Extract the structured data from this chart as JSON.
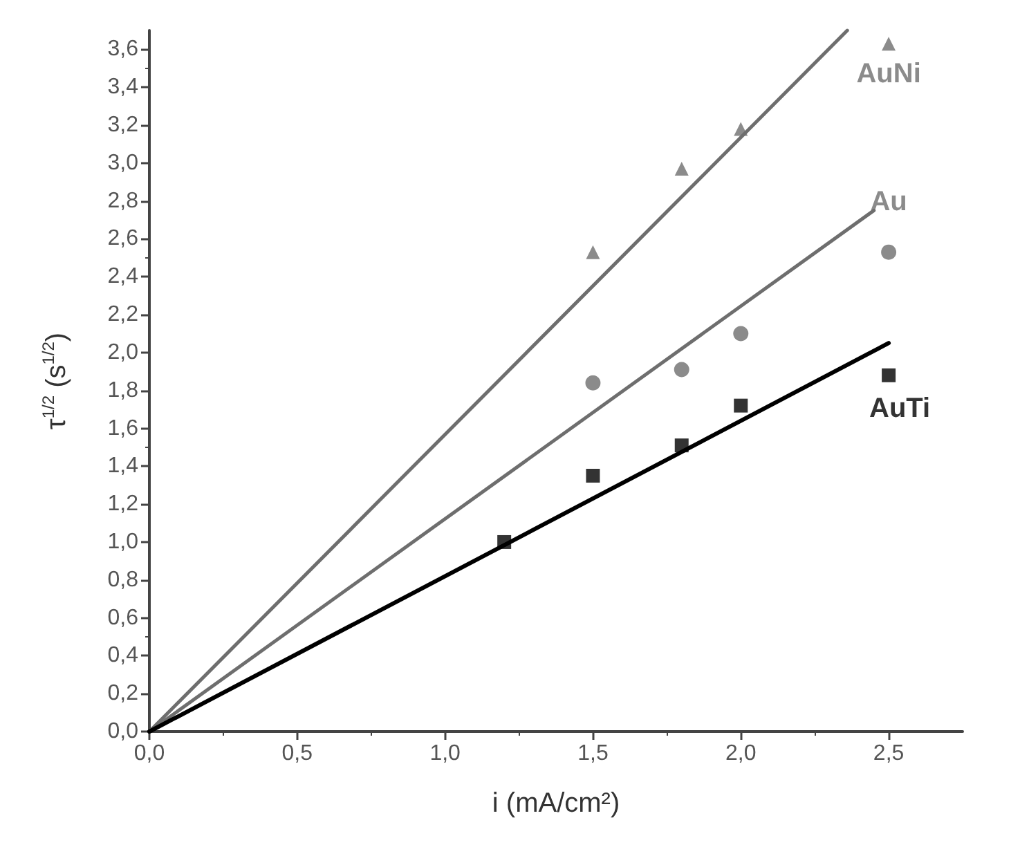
{
  "chart_data": {
    "type": "scatter",
    "xlabel": "i (mA/cm²)",
    "ylabel": "τ$^{1/2}$ (s$^{1/2}$)",
    "xlim": [
      0,
      2.75
    ],
    "ylim": [
      0,
      3.7
    ],
    "xticks": [
      {
        "value": 0,
        "label": "0,0"
      },
      {
        "value": 0.5,
        "label": "0,5"
      },
      {
        "value": 1,
        "label": "1,0"
      },
      {
        "value": 1.5,
        "label": "1,5"
      },
      {
        "value": 2,
        "label": "2,0"
      },
      {
        "value": 2.5,
        "label": "2,5"
      }
    ],
    "yticks": [
      {
        "value": 0,
        "label": "0,0"
      },
      {
        "value": 0.2,
        "label": "0,2"
      },
      {
        "value": 0.4,
        "label": "0,4"
      },
      {
        "value": 0.6,
        "label": "0,6"
      },
      {
        "value": 0.8,
        "label": "0,8"
      },
      {
        "value": 1,
        "label": "1,0"
      },
      {
        "value": 1.2,
        "label": "1,2"
      },
      {
        "value": 1.4,
        "label": "1,4"
      },
      {
        "value": 1.6,
        "label": "1,6"
      },
      {
        "value": 1.8,
        "label": "1,8"
      },
      {
        "value": 2,
        "label": "2,0"
      },
      {
        "value": 2.2,
        "label": "2,2"
      },
      {
        "value": 2.4,
        "label": "2,4"
      },
      {
        "value": 2.6,
        "label": "2,6"
      },
      {
        "value": 2.8,
        "label": "2,8"
      },
      {
        "value": 3,
        "label": "3,0"
      },
      {
        "value": 3.2,
        "label": "3,2"
      },
      {
        "value": 3.4,
        "label": "3,4"
      },
      {
        "value": 3.6,
        "label": "3,6"
      }
    ],
    "series": [
      {
        "name": "AuNi",
        "marker": "triangle",
        "color": "#6e6e6e",
        "x": [
          1.5,
          1.8,
          2.0,
          2.5
        ],
        "values": [
          2.53,
          2.97,
          3.18,
          3.63
        ]
      },
      {
        "name": "Au",
        "marker": "circle",
        "color": "#6e6e6e",
        "x": [
          1.5,
          1.8,
          2.0,
          2.5
        ],
        "values": [
          1.84,
          1.91,
          2.1,
          2.53
        ]
      },
      {
        "name": "AuTi",
        "marker": "square",
        "color": "#000000",
        "x": [
          1.2,
          1.5,
          1.8,
          2.0,
          2.5
        ],
        "values": [
          1.0,
          1.35,
          1.51,
          1.72,
          1.88
        ]
      },
      {
        "type": "line",
        "marker": "none",
        "color": "#6e6e6e",
        "x": [
          0,
          2.36
        ],
        "values": [
          0,
          3.7
        ]
      },
      {
        "type": "line",
        "marker": "none",
        "color": "#6e6e6e",
        "x": [
          0,
          2.45
        ],
        "values": [
          0,
          2.75
        ]
      },
      {
        "type": "line",
        "marker": "none",
        "color": "#000000",
        "x": [
          0,
          2.5
        ],
        "values": [
          0,
          2.05
        ]
      }
    ]
  }
}
